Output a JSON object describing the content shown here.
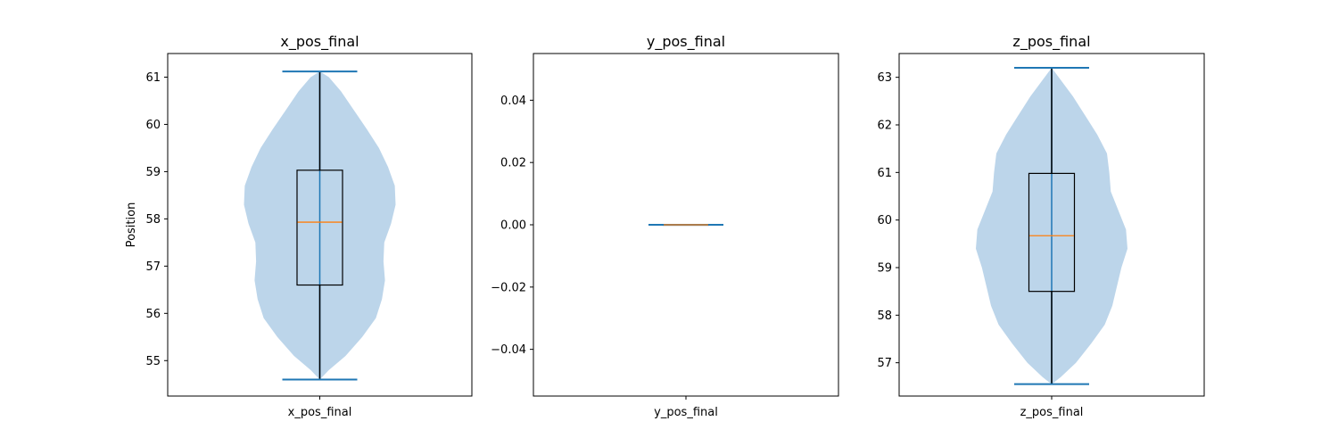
{
  "chart_data": [
    {
      "type": "violin",
      "title": "x_pos_final",
      "xlabel": "",
      "ylabel": "Position",
      "categories": [
        "x_pos_final"
      ],
      "ylim": [
        54.25,
        61.5
      ],
      "yticks": [
        55,
        56,
        57,
        58,
        59,
        60,
        61
      ],
      "tick_labels": [
        "55",
        "56",
        "57",
        "58",
        "59",
        "60",
        "61"
      ],
      "min": 54.6,
      "max": 61.12,
      "q1": 56.6,
      "median": 57.93,
      "q3": 59.03,
      "density": [
        [
          54.6,
          0.0
        ],
        [
          54.8,
          0.12
        ],
        [
          55.1,
          0.34
        ],
        [
          55.5,
          0.56
        ],
        [
          55.9,
          0.74
        ],
        [
          56.3,
          0.82
        ],
        [
          56.7,
          0.86
        ],
        [
          57.1,
          0.84
        ],
        [
          57.5,
          0.85
        ],
        [
          57.9,
          0.94
        ],
        [
          58.3,
          1.0
        ],
        [
          58.7,
          0.99
        ],
        [
          59.1,
          0.9
        ],
        [
          59.5,
          0.78
        ],
        [
          59.9,
          0.62
        ],
        [
          60.3,
          0.45
        ],
        [
          60.7,
          0.28
        ],
        [
          61.0,
          0.12
        ],
        [
          61.12,
          0.0
        ]
      ]
    },
    {
      "type": "violin",
      "title": "y_pos_final",
      "xlabel": "",
      "ylabel": "",
      "categories": [
        "y_pos_final"
      ],
      "ylim": [
        -0.055,
        0.055
      ],
      "yticks": [
        -0.04,
        -0.02,
        0.0,
        0.02,
        0.04
      ],
      "tick_labels": [
        "−0.04",
        "−0.02",
        "0.00",
        "0.02",
        "0.04"
      ],
      "min": 0.0,
      "max": 0.0,
      "q1": 0.0,
      "median": 0.0,
      "q3": 0.0,
      "density": []
    },
    {
      "type": "violin",
      "title": "z_pos_final",
      "xlabel": "",
      "ylabel": "",
      "categories": [
        "z_pos_final"
      ],
      "ylim": [
        56.3,
        63.5
      ],
      "yticks": [
        57,
        58,
        59,
        60,
        61,
        62,
        63
      ],
      "tick_labels": [
        "57",
        "58",
        "59",
        "60",
        "61",
        "62",
        "63"
      ],
      "min": 56.55,
      "max": 63.2,
      "q1": 58.5,
      "median": 59.67,
      "q3": 60.98,
      "density": [
        [
          56.55,
          0.0
        ],
        [
          56.7,
          0.12
        ],
        [
          57.0,
          0.32
        ],
        [
          57.4,
          0.52
        ],
        [
          57.8,
          0.7
        ],
        [
          58.2,
          0.8
        ],
        [
          58.6,
          0.86
        ],
        [
          59.0,
          0.92
        ],
        [
          59.4,
          1.0
        ],
        [
          59.8,
          0.98
        ],
        [
          60.2,
          0.88
        ],
        [
          60.6,
          0.78
        ],
        [
          61.0,
          0.76
        ],
        [
          61.4,
          0.73
        ],
        [
          61.8,
          0.6
        ],
        [
          62.2,
          0.44
        ],
        [
          62.6,
          0.28
        ],
        [
          62.9,
          0.14
        ],
        [
          63.2,
          0.0
        ]
      ]
    }
  ]
}
